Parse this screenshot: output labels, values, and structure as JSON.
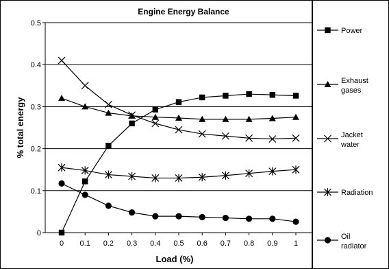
{
  "chart_data": {
    "type": "line",
    "title": "Engine Energy Balance",
    "xlabel": "Load (%)",
    "ylabel": "% total energy",
    "x": [
      0,
      0.1,
      0.2,
      0.3,
      0.4,
      0.5,
      0.6,
      0.7,
      0.8,
      0.9,
      1
    ],
    "x_tick_labels": [
      "0",
      "0.1",
      "0.2",
      "0.3",
      "0.4",
      "0.5",
      "0.6",
      "0.7",
      "0.8",
      "0.9",
      "1"
    ],
    "y_tick_labels": [
      "0",
      "0.1",
      "0.2",
      "0.3",
      "0.4",
      "0.5"
    ],
    "xlim": [
      0,
      1
    ],
    "ylim": [
      0,
      0.5
    ],
    "grid": "horizontal",
    "legend_position": "right",
    "series": [
      {
        "name": "Power",
        "marker": "square",
        "values": [
          0.0,
          0.122,
          0.207,
          0.26,
          0.293,
          0.311,
          0.322,
          0.326,
          0.33,
          0.328,
          0.326
        ]
      },
      {
        "name": "Exhaust gases",
        "legend_lines": [
          "Exhaust",
          "gases"
        ],
        "marker": "triangle",
        "values": [
          0.32,
          0.3,
          0.285,
          0.278,
          0.275,
          0.273,
          0.27,
          0.27,
          0.27,
          0.272,
          0.275
        ]
      },
      {
        "name": "Jacket water",
        "legend_lines": [
          "Jacket",
          "water"
        ],
        "marker": "x",
        "values": [
          0.41,
          0.35,
          0.305,
          0.28,
          0.26,
          0.245,
          0.235,
          0.23,
          0.225,
          0.223,
          0.225
        ]
      },
      {
        "name": "Radiation",
        "legend_lines": [
          "Radiation"
        ],
        "marker": "star",
        "values": [
          0.155,
          0.148,
          0.138,
          0.134,
          0.13,
          0.13,
          0.132,
          0.136,
          0.141,
          0.146,
          0.15
        ]
      },
      {
        "name": "Oil radiator",
        "legend_lines": [
          "Oil",
          "radiator"
        ],
        "marker": "circle",
        "values": [
          0.117,
          0.09,
          0.064,
          0.048,
          0.039,
          0.039,
          0.037,
          0.035,
          0.033,
          0.033,
          0.026
        ]
      }
    ]
  }
}
